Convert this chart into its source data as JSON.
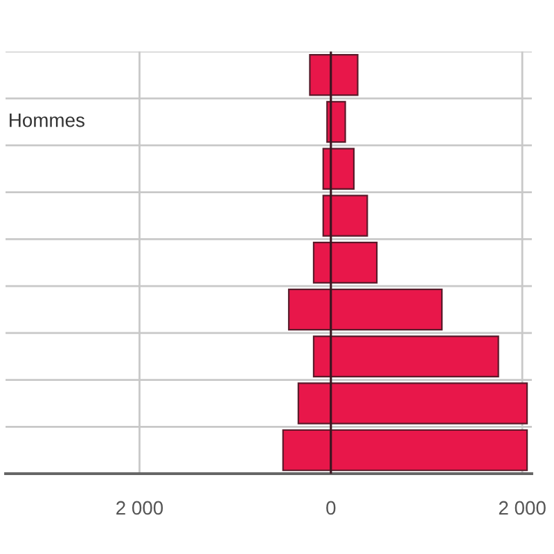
{
  "chart_data": {
    "type": "bar",
    "orientation": "horizontal",
    "stacked": true,
    "categories": [
      null,
      null,
      null,
      null,
      null,
      null,
      null,
      null,
      null
    ],
    "series": [
      {
        "color": "#e8174a",
        "values": [
          -220,
          -40,
          -80,
          -80,
          -180,
          -440,
          -180,
          -340,
          -500
        ]
      },
      {
        "color": "#e8174a",
        "values": [
          280,
          150,
          240,
          380,
          480,
          1160,
          1750,
          2050,
          2050
        ]
      }
    ],
    "xlim": [
      -3400,
      2100
    ],
    "xticks": [
      {
        "value": -2000,
        "label": "2 000"
      },
      0,
      {
        "value": 2000,
        "label": "2 000"
      }
    ],
    "grid": true,
    "tick_labels": "x",
    "ref_lines": [
      {
        "axis": "x",
        "value": 0,
        "color": "#3b1520"
      }
    ],
    "annotations": [
      "Hommes"
    ]
  }
}
